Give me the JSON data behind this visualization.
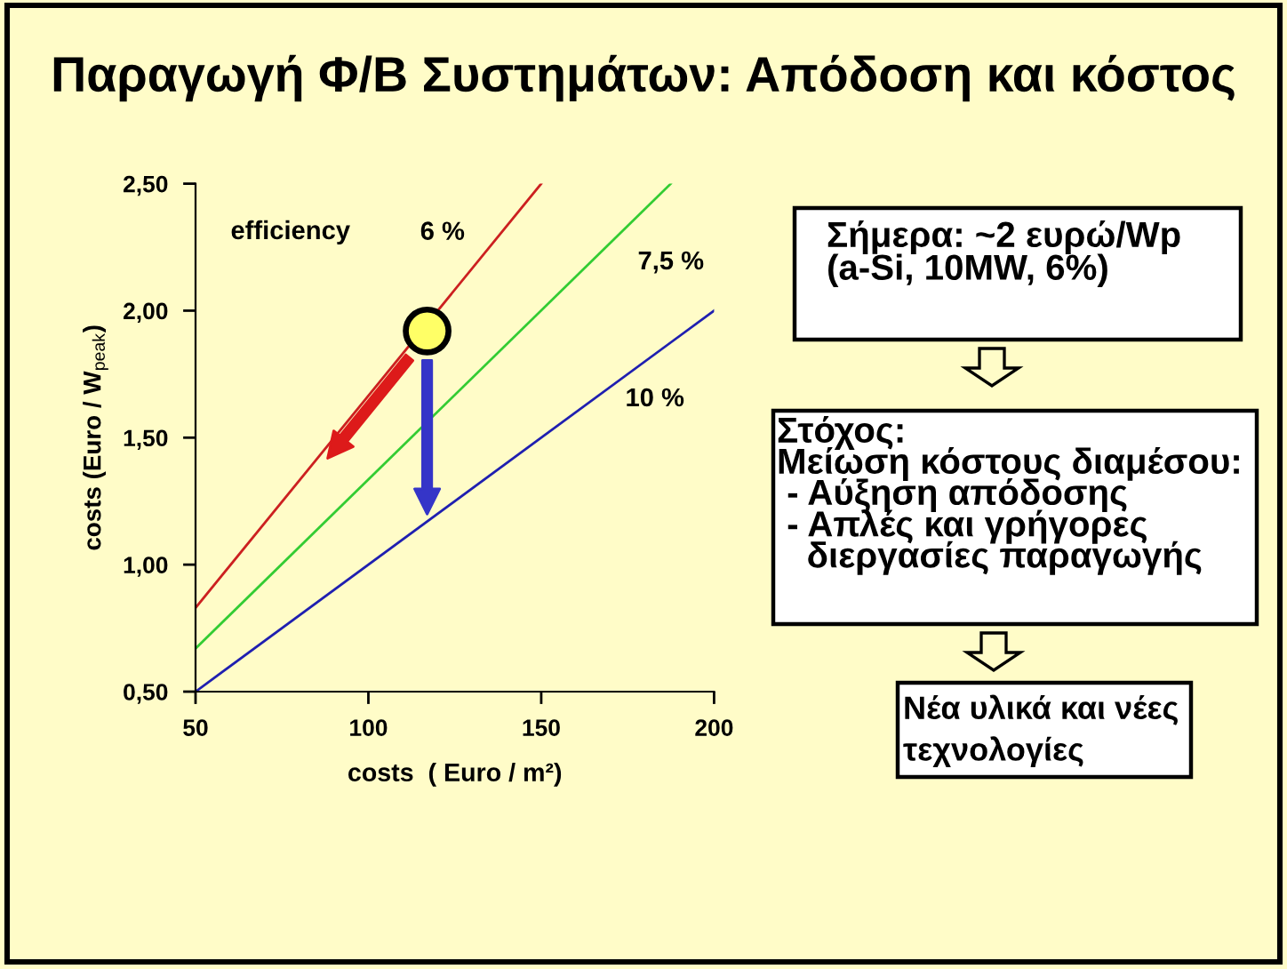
{
  "chart_data": {
    "type": "line",
    "title": "Παραγωγή Φ/Β Συστημάτων: Απόδοση και κόστος",
    "xlabel": "costs  ( Euro / m²)",
    "ylabel": "costs (Euro / W$_{peak}$)",
    "xlim": [
      50,
      200
    ],
    "ylim": [
      0.5,
      2.5
    ],
    "xticks": [
      50,
      100,
      150,
      200
    ],
    "yticks": [
      {
        "value": 0.5,
        "label": "0,50"
      },
      {
        "value": 1.0,
        "label": "1,00"
      },
      {
        "value": 1.5,
        "label": "1,50"
      },
      {
        "value": 2.0,
        "label": "2,00"
      },
      {
        "value": 2.5,
        "label": "2,50"
      }
    ],
    "line_style": "solid",
    "series": [
      {
        "name": "6 %",
        "color": "#cc2020",
        "x": [
          50,
          150
        ],
        "values": [
          0.83,
          2.5
        ]
      },
      {
        "name": "7,5 %",
        "color": "#33cc33",
        "x": [
          50,
          187.5
        ],
        "values": [
          0.67,
          2.5
        ]
      },
      {
        "name": "10 %",
        "color": "#1f1fb0",
        "x": [
          50,
          200
        ],
        "values": [
          0.5,
          2.0
        ]
      },
      {
        "type": "scatter",
        "marker": "circle",
        "color": "#ffff66",
        "x": [
          117
        ],
        "values": [
          1.92
        ]
      }
    ],
    "annotations": [
      "efficiency",
      "Σήμερα: ~2 ευρώ/Wp\n(a-Si, 10MW, 6%)",
      "Στόχος:\nΜείωση κόστους διαμέσου:\n - Αύξηση απόδοσης\n - Απλές και γρήγορες\n   διεργασίες παραγωγής",
      "Νέα υλικά και νέες\nτεχνολογίες"
    ]
  }
}
